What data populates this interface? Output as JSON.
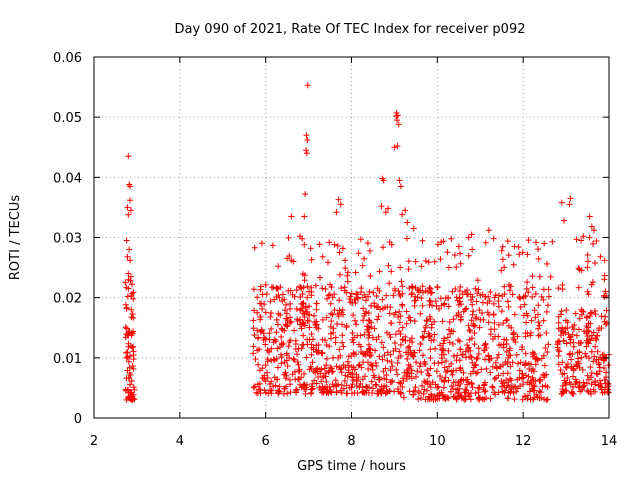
{
  "chart_data": {
    "type": "scatter",
    "title": "Day 090 of 2021, Rate Of TEC Index for receiver p092",
    "xlabel": "GPS time / hours",
    "ylabel": "ROTI / TECUs",
    "xlim": [
      2,
      14
    ],
    "ylim": [
      0,
      0.06
    ],
    "x_ticks": [
      "2",
      "4",
      "6",
      "8",
      "10",
      "12",
      "14"
    ],
    "y_ticks": [
      "0",
      "0.01",
      "0.02",
      "0.03",
      "0.04",
      "0.05",
      "0.06"
    ],
    "grid": true,
    "marker": "plus",
    "series_color": "#ff0000",
    "series": [
      {
        "name": "ROTI",
        "clusters": [
          {
            "x_range": [
              2.72,
              2.95
            ],
            "y_range": [
              0.003,
              0.024
            ],
            "count": 80
          },
          {
            "x_range": [
              5.7,
              9.2
            ],
            "y_range": [
              0.004,
              0.022
            ],
            "count": 620
          },
          {
            "x_range": [
              9.2,
              12.6
            ],
            "y_range": [
              0.003,
              0.022
            ],
            "count": 600
          },
          {
            "x_range": [
              12.8,
              14.0
            ],
            "y_range": [
              0.004,
              0.018
            ],
            "count": 220
          },
          {
            "x_range": [
              5.7,
              14.0
            ],
            "y_range": [
              0.02,
              0.03
            ],
            "count": 160
          }
        ],
        "points": [
          [
            2.8,
            0.0435
          ],
          [
            2.82,
            0.0388
          ],
          [
            2.84,
            0.0385
          ],
          [
            2.78,
            0.035
          ],
          [
            2.86,
            0.0345
          ],
          [
            2.8,
            0.0338
          ],
          [
            2.84,
            0.0362
          ],
          [
            2.76,
            0.0295
          ],
          [
            2.82,
            0.028
          ],
          [
            2.78,
            0.0268
          ],
          [
            2.84,
            0.0262
          ],
          [
            2.8,
            0.024
          ],
          [
            2.86,
            0.0235
          ],
          [
            6.98,
            0.0553
          ],
          [
            6.95,
            0.047
          ],
          [
            6.97,
            0.0462
          ],
          [
            6.94,
            0.0445
          ],
          [
            6.96,
            0.044
          ],
          [
            6.92,
            0.0372
          ],
          [
            6.9,
            0.0335
          ],
          [
            6.6,
            0.0335
          ],
          [
            6.85,
            0.0298
          ],
          [
            7.05,
            0.0282
          ],
          [
            7.7,
            0.0363
          ],
          [
            7.75,
            0.0355
          ],
          [
            7.65,
            0.0342
          ],
          [
            7.8,
            0.0282
          ],
          [
            7.72,
            0.0275
          ],
          [
            7.85,
            0.0262
          ],
          [
            9.05,
            0.0507
          ],
          [
            9.08,
            0.0503
          ],
          [
            9.06,
            0.0495
          ],
          [
            9.1,
            0.0488
          ],
          [
            9.04,
            0.0502
          ],
          [
            9.0,
            0.045
          ],
          [
            9.07,
            0.0452
          ],
          [
            9.12,
            0.0395
          ],
          [
            9.15,
            0.0385
          ],
          [
            8.72,
            0.0398
          ],
          [
            8.75,
            0.0395
          ],
          [
            8.7,
            0.0352
          ],
          [
            8.85,
            0.0348
          ],
          [
            8.8,
            0.0342
          ],
          [
            9.25,
            0.0345
          ],
          [
            9.18,
            0.0338
          ],
          [
            9.3,
            0.0325
          ],
          [
            9.45,
            0.0315
          ],
          [
            11.2,
            0.0312
          ],
          [
            10.8,
            0.0305
          ],
          [
            11.8,
            0.0285
          ],
          [
            12.3,
            0.0292
          ],
          [
            12.9,
            0.0358
          ],
          [
            13.1,
            0.0365
          ],
          [
            13.08,
            0.0355
          ],
          [
            12.95,
            0.0328
          ],
          [
            13.55,
            0.0335
          ],
          [
            13.6,
            0.0318
          ],
          [
            13.65,
            0.0312
          ],
          [
            13.4,
            0.0302
          ],
          [
            13.35,
            0.0295
          ],
          [
            6.8,
            0.0302
          ],
          [
            6.9,
            0.0288
          ],
          [
            6.5,
            0.0265
          ],
          [
            10.5,
            0.0285
          ],
          [
            11.5,
            0.0278
          ],
          [
            12.1,
            0.0272
          ],
          [
            13.8,
            0.0268
          ],
          [
            13.9,
            0.0262
          ]
        ]
      }
    ]
  }
}
